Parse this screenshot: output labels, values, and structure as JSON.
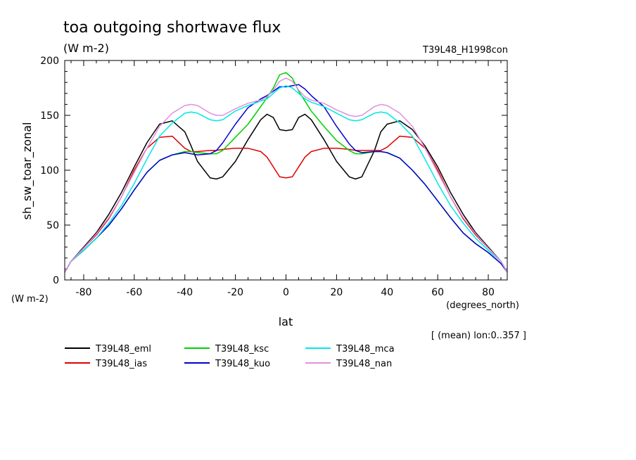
{
  "chart_data": {
    "type": "line",
    "title": "toa outgoing shortwave flux",
    "units": "(W m-2)",
    "run_label": "T39L48_H1998con",
    "ylabel": "sh_sw_toar_zonal",
    "y_units": "(W m-2)",
    "xlabel": "lat",
    "x_units": "(degrees_north)",
    "mean_note": "[ (mean) lon:0..357 ]",
    "xlim": [
      -87.5,
      87.5
    ],
    "ylim": [
      0,
      200
    ],
    "x_ticks": [
      -80,
      -60,
      -40,
      -20,
      0,
      20,
      40,
      60,
      80
    ],
    "x_tick_labels": [
      "-80",
      "-60",
      "-40",
      "-20",
      "0",
      "20",
      "40",
      "60",
      "80"
    ],
    "y_ticks": [
      0,
      50,
      100,
      150,
      200
    ],
    "y_tick_labels": [
      "0",
      "50",
      "100",
      "150",
      "200"
    ],
    "x": [
      -87.5,
      -85,
      -80,
      -75,
      -70,
      -65,
      -60,
      -55,
      -50,
      -45,
      -40,
      -37.5,
      -35,
      -30,
      -27.5,
      -25,
      -20,
      -15,
      -10,
      -7.5,
      -5,
      -2.5,
      0,
      2.5,
      5,
      7.5,
      10,
      15,
      20,
      25,
      27.5,
      30,
      35,
      37.5,
      40,
      45,
      50,
      55,
      60,
      65,
      70,
      75,
      80,
      85,
      87.5
    ],
    "series": [
      {
        "name": "T39L48_eml",
        "color": "#000000",
        "values": [
          7,
          17,
          30,
          43,
          60,
          80,
          103,
          125,
          142,
          145,
          135,
          122,
          108,
          93,
          92,
          94,
          108,
          128,
          146,
          151,
          148,
          137,
          136,
          137,
          148,
          151,
          146,
          128,
          108,
          94,
          92,
          94,
          118,
          135,
          142,
          145,
          137,
          122,
          103,
          80,
          60,
          43,
          30,
          17,
          7
        ]
      },
      {
        "name": "T39L48_ias",
        "color": "#e00000",
        "values": [
          7,
          17,
          29,
          41,
          56,
          76,
          100,
          120,
          130,
          131,
          120,
          117,
          117,
          118,
          118,
          119,
          120,
          120,
          117,
          112,
          103,
          94,
          93,
          94,
          103,
          112,
          117,
          120,
          120,
          119,
          118,
          118,
          118,
          118,
          121,
          131,
          130,
          120,
          100,
          76,
          56,
          41,
          29,
          17,
          7
        ]
      },
      {
        "name": "T39L48_ksc",
        "color": "#00d000",
        "values": [
          7,
          17,
          27,
          38,
          50,
          65,
          82,
          98,
          109,
          114,
          117,
          117,
          116,
          115,
          115,
          118,
          130,
          142,
          158,
          166,
          175,
          187,
          189,
          184,
          172,
          163,
          154,
          140,
          127,
          118,
          115,
          115,
          117,
          117,
          116,
          111,
          100,
          87,
          72,
          57,
          43,
          33,
          25,
          15,
          7
        ]
      },
      {
        "name": "T39L48_kuo",
        "color": "#0000d0",
        "values": [
          7,
          17,
          27,
          38,
          50,
          65,
          82,
          98,
          109,
          114,
          116,
          115,
          114,
          115,
          118,
          125,
          142,
          157,
          165,
          168,
          172,
          176,
          176,
          177,
          178,
          174,
          168,
          158,
          140,
          124,
          118,
          116,
          117,
          117,
          116,
          111,
          100,
          87,
          72,
          57,
          43,
          33,
          25,
          15,
          7
        ]
      },
      {
        "name": "T39L48_mca",
        "color": "#00e8e8",
        "values": [
          7,
          17,
          27,
          38,
          52,
          68,
          88,
          110,
          131,
          143,
          152,
          153,
          152,
          146,
          145,
          146,
          154,
          159,
          163,
          165,
          170,
          175,
          177,
          175,
          170,
          165,
          162,
          158,
          152,
          146,
          145,
          146,
          152,
          153,
          152,
          143,
          131,
          110,
          88,
          68,
          52,
          38,
          27,
          17,
          7
        ]
      },
      {
        "name": "T39L48_nan",
        "color": "#e090e0",
        "values": [
          7,
          17,
          29,
          42,
          57,
          76,
          98,
          120,
          140,
          152,
          159,
          160,
          159,
          152,
          150,
          150,
          156,
          161,
          164,
          167,
          173,
          181,
          184,
          181,
          173,
          167,
          164,
          161,
          155,
          150,
          149,
          150,
          158,
          160,
          159,
          152,
          140,
          120,
          98,
          76,
          57,
          42,
          29,
          17,
          7
        ]
      }
    ]
  }
}
